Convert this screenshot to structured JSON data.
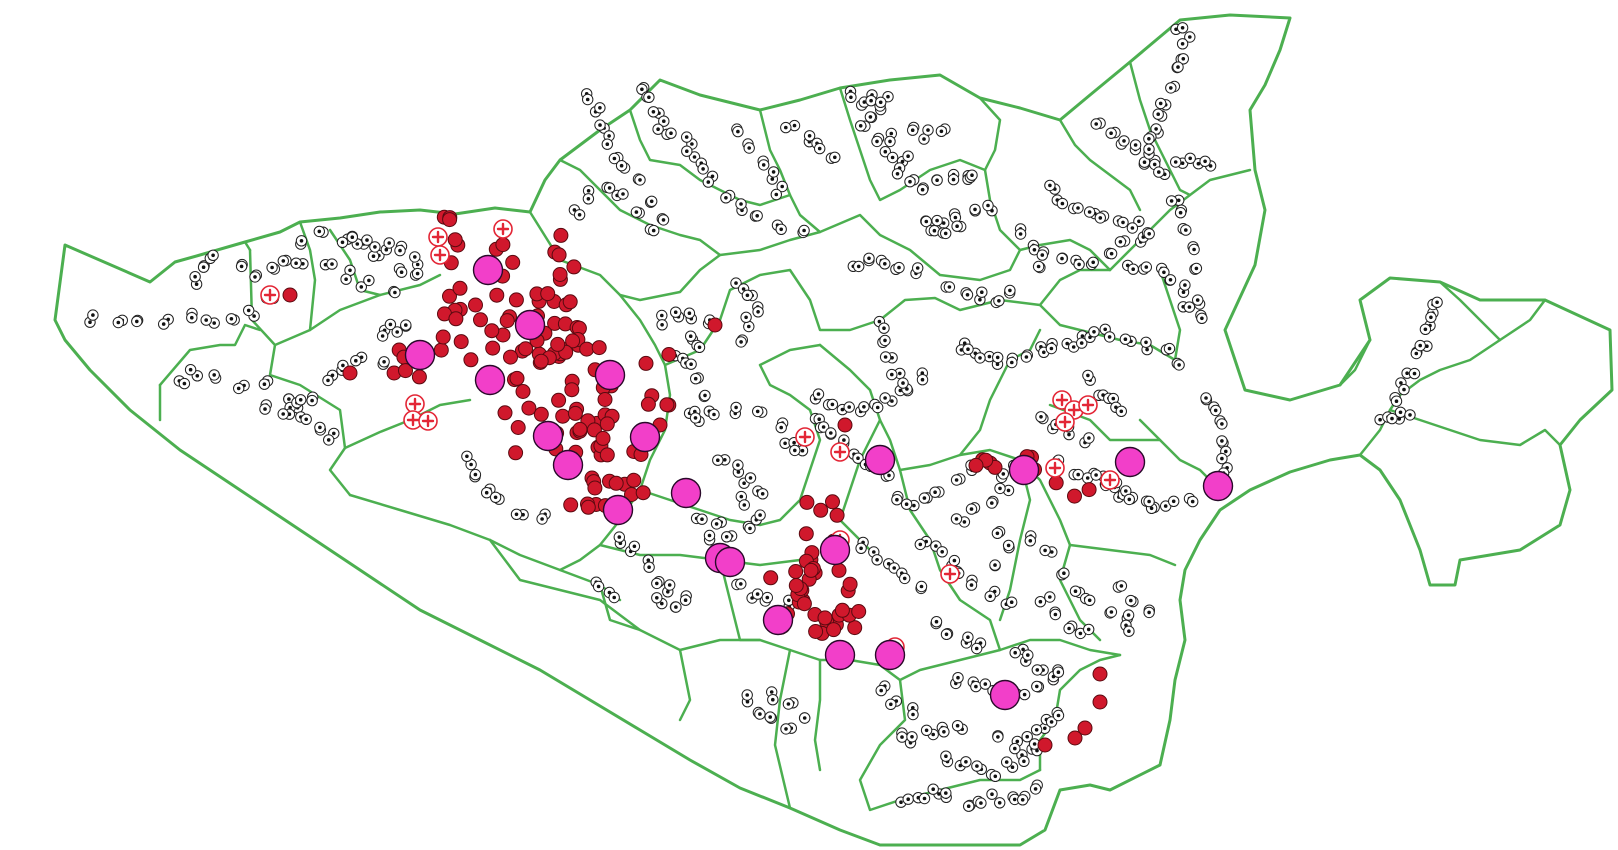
{
  "map": {
    "colors": {
      "boundary": "#4caf50",
      "settlement": "#111111",
      "case": "#d0182c",
      "hospital": "#e32636",
      "cluster": "#f23fc9"
    },
    "icons": {
      "settlement": "dot-in-circle-icon",
      "case": "red-dot-icon",
      "hospital": "red-cross-circle-icon",
      "cluster": "magenta-circle-icon"
    }
  }
}
